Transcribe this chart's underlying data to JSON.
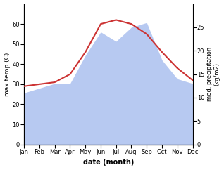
{
  "months": [
    "Jan",
    "Feb",
    "Mar",
    "Apr",
    "May",
    "Jun",
    "Jul",
    "Aug",
    "Sep",
    "Oct",
    "Nov",
    "Dec"
  ],
  "max_temp": [
    29,
    30,
    31,
    35,
    46,
    60,
    62,
    60,
    55,
    46,
    38,
    32
  ],
  "precipitation": [
    11,
    12,
    13,
    13,
    19,
    24,
    22,
    25,
    26,
    18,
    14,
    13
  ],
  "temp_ylim": [
    0,
    70
  ],
  "precip_ylim": [
    0,
    30
  ],
  "temp_yticks": [
    0,
    10,
    20,
    30,
    40,
    50,
    60
  ],
  "precip_yticks": [
    0,
    5,
    10,
    15,
    20,
    25
  ],
  "line_color": "#cc3333",
  "fill_color": "#afc3f0",
  "left_ylabel": "max temp (C)",
  "right_ylabel": "med. precipitation\n(kg/m2)",
  "xlabel": "date (month)"
}
